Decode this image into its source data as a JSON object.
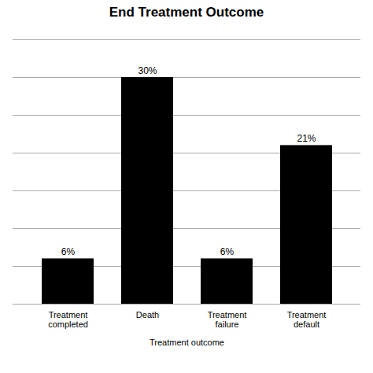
{
  "chart_data": {
    "type": "bar",
    "title": "End Treatment Outcome",
    "xlabel": "Treatment outcome",
    "categories": [
      "Treatment\ncompleted",
      "Death",
      "Treatment\nfailure",
      "Treatment\ndefault"
    ],
    "values": [
      6,
      30,
      6,
      21
    ],
    "value_labels": [
      "6%",
      "30%",
      "6%",
      "21%"
    ],
    "data_labels": true,
    "color": "#000000",
    "ylim": [
      0,
      35
    ],
    "yticks": [
      0,
      5,
      10,
      15,
      20,
      25,
      30,
      35
    ],
    "grid": true,
    "tick_labels": "x"
  }
}
